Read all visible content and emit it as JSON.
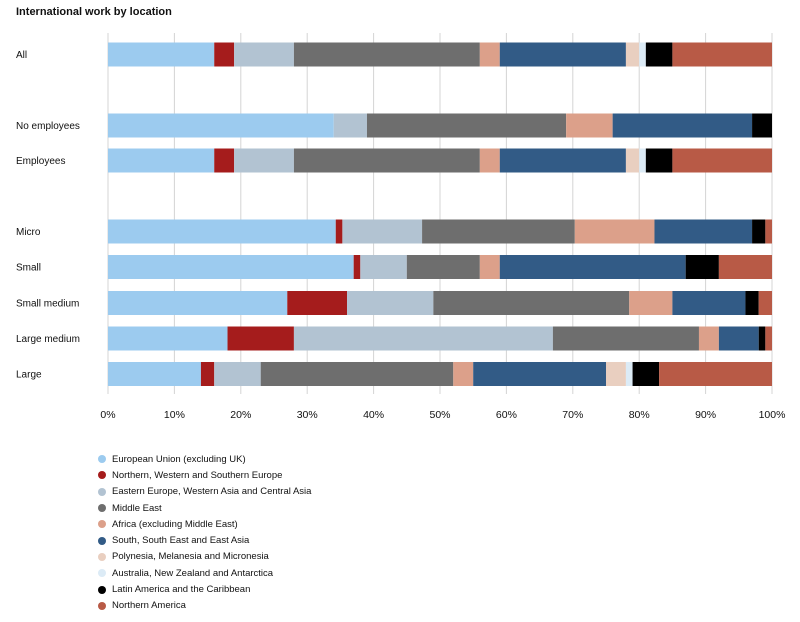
{
  "chart_data": {
    "type": "bar",
    "orientation": "horizontal",
    "stacked": true,
    "title": "International work by location",
    "xlim": [
      0,
      100
    ],
    "x_ticks": [
      "0%",
      "10%",
      "20%",
      "30%",
      "40%",
      "50%",
      "60%",
      "70%",
      "80%",
      "90%",
      "100%"
    ],
    "grid": true,
    "legend_position": "bottom-left",
    "categories": [
      "All",
      "No employees",
      "Employees",
      "Micro",
      "Small",
      "Small medium",
      "Large medium",
      "Large"
    ],
    "series": [
      {
        "name": "European Union (excluding UK)",
        "color": "#9ccbef",
        "values": [
          16,
          34,
          16,
          34.3,
          37,
          27,
          18,
          14
        ]
      },
      {
        "name": "Northern, Western and Southern Europe",
        "color": "#a51c1c",
        "values": [
          3,
          0,
          3,
          1,
          1,
          9,
          10,
          2
        ]
      },
      {
        "name": "Eastern Europe, Western Asia and Central Asia",
        "color": "#b2c3d2",
        "values": [
          9,
          5,
          9,
          12,
          7,
          13,
          39,
          7
        ]
      },
      {
        "name": "Middle East",
        "color": "#6e6e6e",
        "values": [
          28,
          30,
          28,
          23,
          11,
          29.5,
          22,
          29
        ]
      },
      {
        "name": "Africa (excluding Middle East)",
        "color": "#dca08a",
        "values": [
          3,
          7,
          3,
          12,
          3,
          6.5,
          3,
          3
        ]
      },
      {
        "name": "South, South East and East Asia",
        "color": "#325b86",
        "values": [
          19,
          21,
          19,
          14.7,
          28,
          11,
          6,
          20
        ]
      },
      {
        "name": "Polynesia, Melanesia and Micronesia",
        "color": "#e9cfc0",
        "values": [
          2,
          0,
          2,
          0,
          0,
          0,
          0,
          3
        ]
      },
      {
        "name": "Australia, New Zealand and Antarctica",
        "color": "#dcebf6",
        "values": [
          1,
          0,
          1,
          0,
          0,
          0,
          0,
          1
        ]
      },
      {
        "name": "Latin America and the Caribbean",
        "color": "#000000",
        "values": [
          4,
          3,
          4,
          2,
          5,
          2,
          1,
          4
        ]
      },
      {
        "name": "Northern America",
        "color": "#b85a46",
        "values": [
          15,
          0,
          15,
          1,
          8,
          2,
          1,
          17
        ]
      }
    ]
  }
}
